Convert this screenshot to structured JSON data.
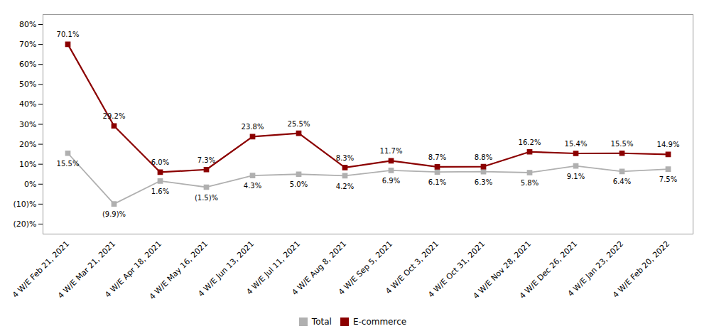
{
  "chart_data": {
    "type": "line",
    "categories": [
      "4 W/E Feb 21, 2021",
      "4 W/E Mar 21, 2021",
      "4 W/E Apr 18, 2021",
      "4 W/E May 16, 2021",
      "4 W/E Jun 13, 2021",
      "4 W/E Jul 11, 2021",
      "4 W/E Aug 8, 2021",
      "4 W/E Sep 5, 2021",
      "4 W/E Oct 3, 2021",
      "4 W/E Oct 31, 2021",
      "4 W/E Nov 28, 2021",
      "4 W/E Dec 26, 2021",
      "4 W/E Jan 23, 2022",
      "4 W/E Feb 20, 2022"
    ],
    "series": [
      {
        "name": "Total",
        "color": "#B0B0B0",
        "marker": "square",
        "values": [
          15.5,
          -9.9,
          1.6,
          -1.5,
          4.3,
          5.0,
          4.2,
          6.9,
          6.1,
          6.3,
          5.8,
          9.1,
          6.4,
          7.5
        ],
        "value_labels": [
          "15.5%",
          "(9.9)%",
          "1.6%",
          "(1.5)%",
          "4.3%",
          "5.0%",
          "4.2%",
          "6.9%",
          "6.1%",
          "6.3%",
          "5.8%",
          "9.1%",
          "6.4%",
          "7.5%"
        ]
      },
      {
        "name": "E-commerce",
        "color": "#8B0000",
        "marker": "square",
        "values": [
          70.1,
          29.2,
          6.0,
          7.3,
          23.8,
          25.5,
          8.3,
          11.7,
          8.7,
          8.8,
          16.2,
          15.4,
          15.5,
          14.9
        ],
        "value_labels": [
          "70.1%",
          "29.2%",
          "6.0%",
          "7.3%",
          "23.8%",
          "25.5%",
          "8.3%",
          "11.7%",
          "8.7%",
          "8.8%",
          "16.2%",
          "15.4%",
          "15.5%",
          "14.9%"
        ]
      }
    ],
    "ylim": [
      -25,
      85
    ],
    "yticks": [
      {
        "value": -20,
        "label": "(20)%"
      },
      {
        "value": -10,
        "label": "(10)%"
      },
      {
        "value": 0,
        "label": "0%"
      },
      {
        "value": 10,
        "label": "10%"
      },
      {
        "value": 20,
        "label": "20%"
      },
      {
        "value": 30,
        "label": "30%"
      },
      {
        "value": 40,
        "label": "40%"
      },
      {
        "value": 50,
        "label": "50%"
      },
      {
        "value": 60,
        "label": "60%"
      },
      {
        "value": 70,
        "label": "70%"
      },
      {
        "value": 80,
        "label": "80%"
      }
    ],
    "data_labels": true,
    "legend": "bottom",
    "grid": false
  }
}
